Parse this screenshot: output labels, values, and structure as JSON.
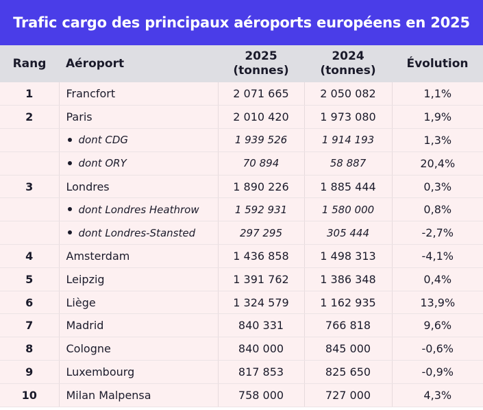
{
  "title": "Trafic cargo des principaux aéroports européens en 2025",
  "headers": {
    "rank": "Rang",
    "airport": "Aéroport",
    "y2025_line1": "2025",
    "y2025_line2": "(tonnes)",
    "y2024_line1": "2024",
    "y2024_line2": "(tonnes)",
    "evolution": "Évolution"
  },
  "rows": [
    {
      "rank": "1",
      "airport": "Francfort",
      "v2025": "2 071 665",
      "v2024": "2 050 082",
      "evo": "1,1%",
      "sub": false
    },
    {
      "rank": "2",
      "airport": "Paris",
      "v2025": "2 010 420",
      "v2024": "1 973 080",
      "evo": "1,9%",
      "sub": false
    },
    {
      "rank": "",
      "airport": "dont CDG",
      "v2025": "1 939 526",
      "v2024": "1 914 193",
      "evo": "1,3%",
      "sub": true
    },
    {
      "rank": "",
      "airport": "dont ORY",
      "v2025": "70 894",
      "v2024": "58 887",
      "evo": "20,4%",
      "sub": true
    },
    {
      "rank": "3",
      "airport": "Londres",
      "v2025": "1 890 226",
      "v2024": "1 885 444",
      "evo": "0,3%",
      "sub": false
    },
    {
      "rank": "",
      "airport": "dont Londres Heathrow",
      "v2025": "1 592 931",
      "v2024": "1 580 000",
      "evo": "0,8%",
      "sub": true
    },
    {
      "rank": "",
      "airport": "dont Londres-Stansted",
      "v2025": "297 295",
      "v2024": "305 444",
      "evo": "-2,7%",
      "sub": true
    },
    {
      "rank": "4",
      "airport": "Amsterdam",
      "v2025": "1 436 858",
      "v2024": "1 498 313",
      "evo": "-4,1%",
      "sub": false
    },
    {
      "rank": "5",
      "airport": "Leipzig",
      "v2025": "1 391 762",
      "v2024": "1 386 348",
      "evo": "0,4%",
      "sub": false
    },
    {
      "rank": "6",
      "airport": "Liège",
      "v2025": "1 324 579",
      "v2024": "1 162 935",
      "evo": "13,9%",
      "sub": false
    },
    {
      "rank": "7",
      "airport": "Madrid",
      "v2025": "840 331",
      "v2024": "766 818",
      "evo": "9,6%",
      "sub": false
    },
    {
      "rank": "8",
      "airport": "Cologne",
      "v2025": "840 000",
      "v2024": "845 000",
      "evo": "-0,6%",
      "sub": false
    },
    {
      "rank": "9",
      "airport": "Luxembourg",
      "v2025": "817 853",
      "v2024": "825 650",
      "evo": "-0,9%",
      "sub": false
    },
    {
      "rank": "10",
      "airport": "Milan Malpensa",
      "v2025": "758 000",
      "v2024": "727 000",
      "evo": "4,3%",
      "sub": false
    }
  ],
  "colors": {
    "title_bg": "#4a3de8",
    "header_bg": "#dedee3",
    "row_bg": "#fdf0f1"
  }
}
